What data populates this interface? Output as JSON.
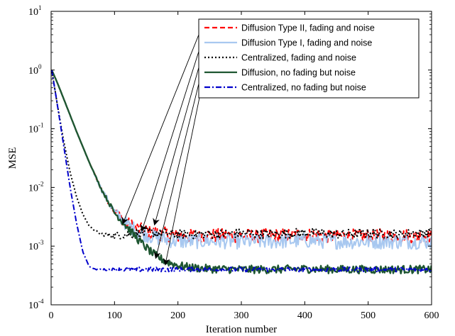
{
  "chart_data": {
    "type": "line",
    "title": "",
    "xlabel": "Iteration number",
    "ylabel": "MSE",
    "xlim": [
      0,
      600
    ],
    "ylim": [
      0.0001,
      10
    ],
    "yscale": "log",
    "grid": false,
    "legend_position": "top-right",
    "x_ticks": [
      {
        "value": 0,
        "label": "0"
      },
      {
        "value": 100,
        "label": "100"
      },
      {
        "value": 200,
        "label": "200"
      },
      {
        "value": 300,
        "label": "300"
      },
      {
        "value": 400,
        "label": "400"
      },
      {
        "value": 500,
        "label": "500"
      },
      {
        "value": 600,
        "label": "600"
      }
    ],
    "y_ticks": [
      {
        "value": 0.0001,
        "base": "10",
        "exp": "-4"
      },
      {
        "value": 0.001,
        "base": "10",
        "exp": "-3"
      },
      {
        "value": 0.01,
        "base": "10",
        "exp": "-2"
      },
      {
        "value": 0.1,
        "base": "10",
        "exp": "-1"
      },
      {
        "value": 1,
        "base": "10",
        "exp": "0"
      },
      {
        "value": 10,
        "base": "10",
        "exp": "1"
      }
    ],
    "series": [
      {
        "name": "Diffusion Type II, fading and noise",
        "color": "#ff0000",
        "dash": "dashed",
        "x": [
          1,
          10,
          20,
          40,
          60,
          80,
          100,
          120,
          140,
          160,
          180,
          200,
          250,
          300,
          350,
          400,
          450,
          500,
          550,
          600
        ],
        "y": [
          1.0,
          0.6,
          0.32,
          0.09,
          0.027,
          0.009,
          0.0039,
          0.0024,
          0.0019,
          0.0017,
          0.0016,
          0.0015,
          0.00152,
          0.0015,
          0.0015,
          0.00155,
          0.00148,
          0.0015,
          0.0015,
          0.0015
        ],
        "noise": 0.12
      },
      {
        "name": "Diffusion Type I, fading and noise",
        "color": "#a8c8f0",
        "dash": "solid",
        "x": [
          1,
          10,
          20,
          40,
          60,
          80,
          100,
          120,
          140,
          160,
          180,
          200,
          250,
          300,
          350,
          400,
          450,
          500,
          550,
          600
        ],
        "y": [
          1.0,
          0.6,
          0.32,
          0.09,
          0.027,
          0.009,
          0.0038,
          0.0023,
          0.0017,
          0.00145,
          0.0013,
          0.0012,
          0.00122,
          0.0012,
          0.0012,
          0.00125,
          0.0012,
          0.0012,
          0.0012,
          0.0012
        ],
        "noise": 0.13
      },
      {
        "name": "Centralized, fading and noise",
        "color": "#000000",
        "dash": "dotted",
        "x": [
          1,
          10,
          20,
          30,
          40,
          50,
          60,
          70,
          80,
          100,
          120,
          150,
          200,
          250,
          300,
          350,
          400,
          450,
          500,
          550,
          600
        ],
        "y": [
          1.0,
          0.25,
          0.06,
          0.018,
          0.007,
          0.0035,
          0.0022,
          0.0018,
          0.0016,
          0.0015,
          0.0016,
          0.0017,
          0.0016,
          0.0016,
          0.00165,
          0.0016,
          0.0017,
          0.0016,
          0.00165,
          0.0016,
          0.0017
        ],
        "noise": 0.08
      },
      {
        "name": "Diffusion, no fading but noise",
        "color": "#1e5631",
        "dash": "solid",
        "x": [
          1,
          10,
          20,
          40,
          60,
          80,
          100,
          120,
          140,
          160,
          180,
          200,
          220,
          250,
          300,
          350,
          400,
          450,
          500,
          550,
          600
        ],
        "y": [
          1.0,
          0.6,
          0.32,
          0.09,
          0.027,
          0.009,
          0.0037,
          0.0021,
          0.0012,
          0.00075,
          0.00055,
          0.00047,
          0.00043,
          0.00041,
          0.0004,
          0.0004,
          0.00041,
          0.0004,
          0.0004,
          0.0004,
          0.0004
        ],
        "noise": 0.07
      },
      {
        "name": "Centralized, no fading but noise",
        "color": "#0000cc",
        "dash": "dashdot",
        "x": [
          1,
          10,
          20,
          30,
          40,
          50,
          60,
          70,
          100,
          150,
          200,
          250,
          300,
          350,
          400,
          450,
          500,
          550,
          600
        ],
        "y": [
          1.0,
          0.25,
          0.05,
          0.01,
          0.0025,
          0.0008,
          0.00045,
          0.0004,
          0.0004,
          0.0004,
          0.0004,
          0.0004,
          0.0004,
          0.0004,
          0.0004,
          0.0004,
          0.0004,
          0.0004,
          0.0004
        ],
        "noise": 0.04
      }
    ],
    "annotations": [
      {
        "from_series": 0,
        "to": {
          "x": 113,
          "y": 0.0024
        }
      },
      {
        "from_series": 1,
        "to": {
          "x": 143,
          "y": 0.0018
        }
      },
      {
        "from_series": 2,
        "to": {
          "x": 163,
          "y": 0.0023
        }
      },
      {
        "from_series": 3,
        "to": {
          "x": 165,
          "y": 0.00062
        }
      },
      {
        "from_series": 4,
        "to": {
          "x": 180,
          "y": 0.00048
        }
      }
    ]
  }
}
